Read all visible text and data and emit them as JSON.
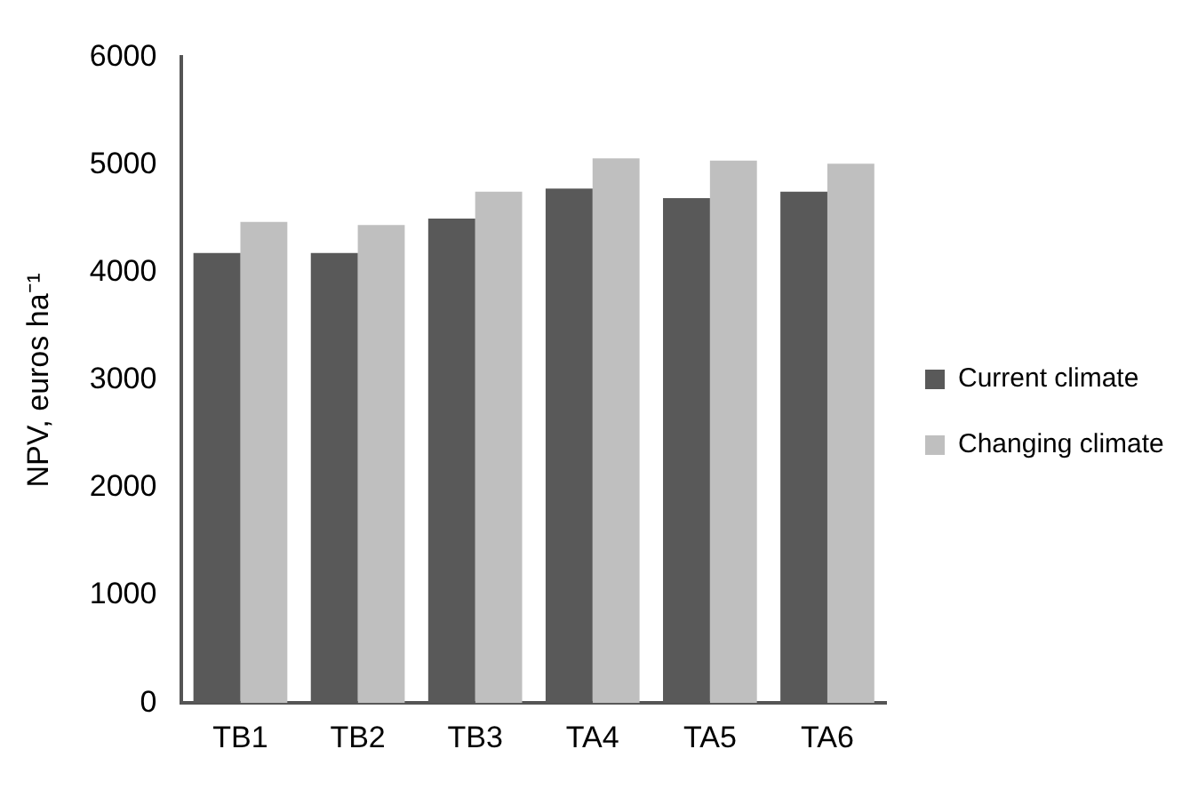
{
  "chart_data": {
    "type": "bar",
    "ylabel": "NPV, euros ha⁻¹",
    "categories": [
      "TB1",
      "TB2",
      "TB3",
      "TA4",
      "TA5",
      "TA6"
    ],
    "series": [
      {
        "name": "Current climate",
        "color": "#595959",
        "values": [
          4180,
          4180,
          4500,
          4780,
          4690,
          4750
        ]
      },
      {
        "name": "Changing climate",
        "color": "#bfbfbf",
        "values": [
          4470,
          4440,
          4750,
          5060,
          5040,
          5010
        ]
      }
    ],
    "ylim": [
      0,
      6000
    ],
    "yticks": [
      0,
      1000,
      2000,
      3000,
      4000,
      5000,
      6000
    ],
    "grid": false,
    "legend": "right"
  }
}
